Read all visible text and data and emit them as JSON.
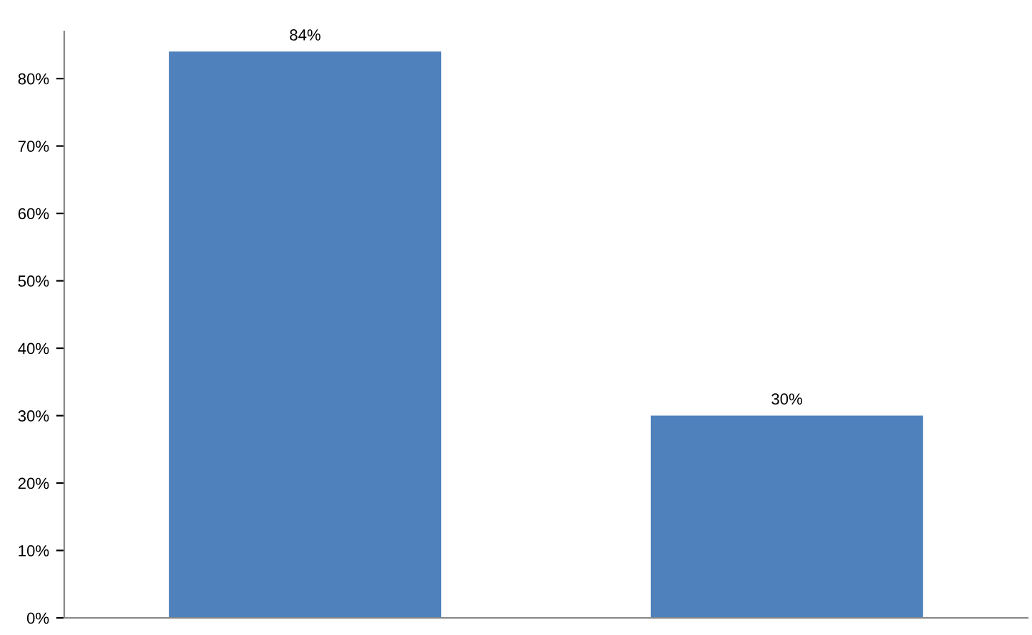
{
  "chart_data": {
    "type": "bar",
    "categories": [
      null,
      null
    ],
    "values": [
      84,
      30
    ],
    "value_labels": [
      "84%",
      "30%"
    ],
    "color": "#4f81bd",
    "ylim": [
      0,
      87
    ],
    "yticks": [
      {
        "value": 0,
        "label": "0%"
      },
      {
        "value": 10,
        "label": "10%"
      },
      {
        "value": 20,
        "label": "20%"
      },
      {
        "value": 30,
        "label": "30%"
      },
      {
        "value": 40,
        "label": "40%"
      },
      {
        "value": 50,
        "label": "50%"
      },
      {
        "value": 60,
        "label": "60%"
      },
      {
        "value": 70,
        "label": "70%"
      },
      {
        "value": 80,
        "label": "80%"
      }
    ],
    "grid": false,
    "legend": false
  }
}
